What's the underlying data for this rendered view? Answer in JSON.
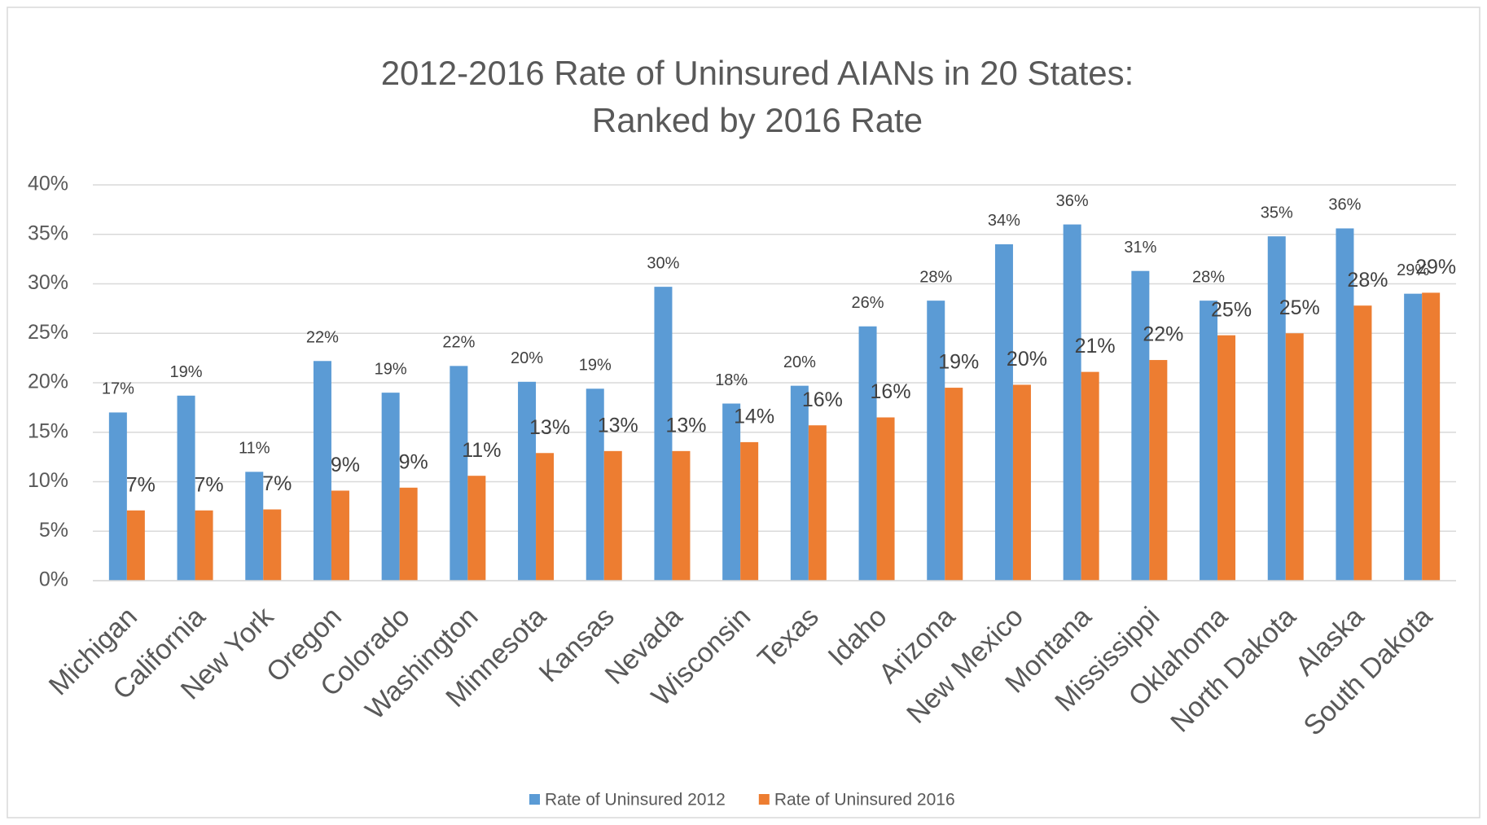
{
  "chart_data": {
    "type": "bar",
    "title": "2012-2016 Rate of Uninsured AIANs in 20 States:",
    "subtitle": "Ranked by 2016 Rate",
    "categories": [
      "Michigan",
      "California",
      "New York",
      "Oregon",
      "Colorado",
      "Washington",
      "Minnesota",
      "Kansas",
      "Nevada",
      "Wisconsin",
      "Texas",
      "Idaho",
      "Arizona",
      "New Mexico",
      "Montana",
      "Mississippi",
      "Oklahoma",
      "North Dakota",
      "Alaska",
      "South Dakota"
    ],
    "series": [
      {
        "name": "Rate of Uninsured 2012",
        "color": "#5b9bd5",
        "values": [
          17.0,
          18.7,
          11.0,
          22.2,
          19.0,
          21.7,
          20.1,
          19.4,
          29.7,
          17.9,
          19.7,
          25.7,
          28.3,
          34.0,
          36.0,
          31.3,
          28.3,
          34.8,
          35.6,
          29.0
        ],
        "value_labels": [
          "17%",
          "19%",
          "11%",
          "22%",
          "19%",
          "22%",
          "20%",
          "19%",
          "30%",
          "18%",
          "20%",
          "26%",
          "28%",
          "34%",
          "36%",
          "31%",
          "28%",
          "35%",
          "36%",
          "29%"
        ]
      },
      {
        "name": "Rate of Uninsured 2016",
        "color": "#ed7d31",
        "values": [
          7.1,
          7.1,
          7.2,
          9.1,
          9.4,
          10.6,
          12.9,
          13.1,
          13.1,
          14.0,
          15.7,
          16.5,
          19.5,
          19.8,
          21.1,
          22.3,
          24.8,
          25.0,
          27.8,
          29.1
        ],
        "value_labels": [
          "7%",
          "7%",
          "7%",
          "9%",
          "9%",
          "11%",
          "13%",
          "13%",
          "13%",
          "14%",
          "16%",
          "16%",
          "19%",
          "20%",
          "21%",
          "22%",
          "25%",
          "25%",
          "28%",
          "29%"
        ]
      }
    ],
    "ylim": [
      0,
      40
    ],
    "yticks": [
      {
        "value": 0,
        "label": "0%"
      },
      {
        "value": 5,
        "label": "5%"
      },
      {
        "value": 10,
        "label": "10%"
      },
      {
        "value": 15,
        "label": "15%"
      },
      {
        "value": 20,
        "label": "20%"
      },
      {
        "value": 25,
        "label": "25%"
      },
      {
        "value": 30,
        "label": "30%"
      },
      {
        "value": 35,
        "label": "35%"
      },
      {
        "value": 40,
        "label": "40%"
      }
    ],
    "grid": true,
    "legend": "bottom"
  }
}
